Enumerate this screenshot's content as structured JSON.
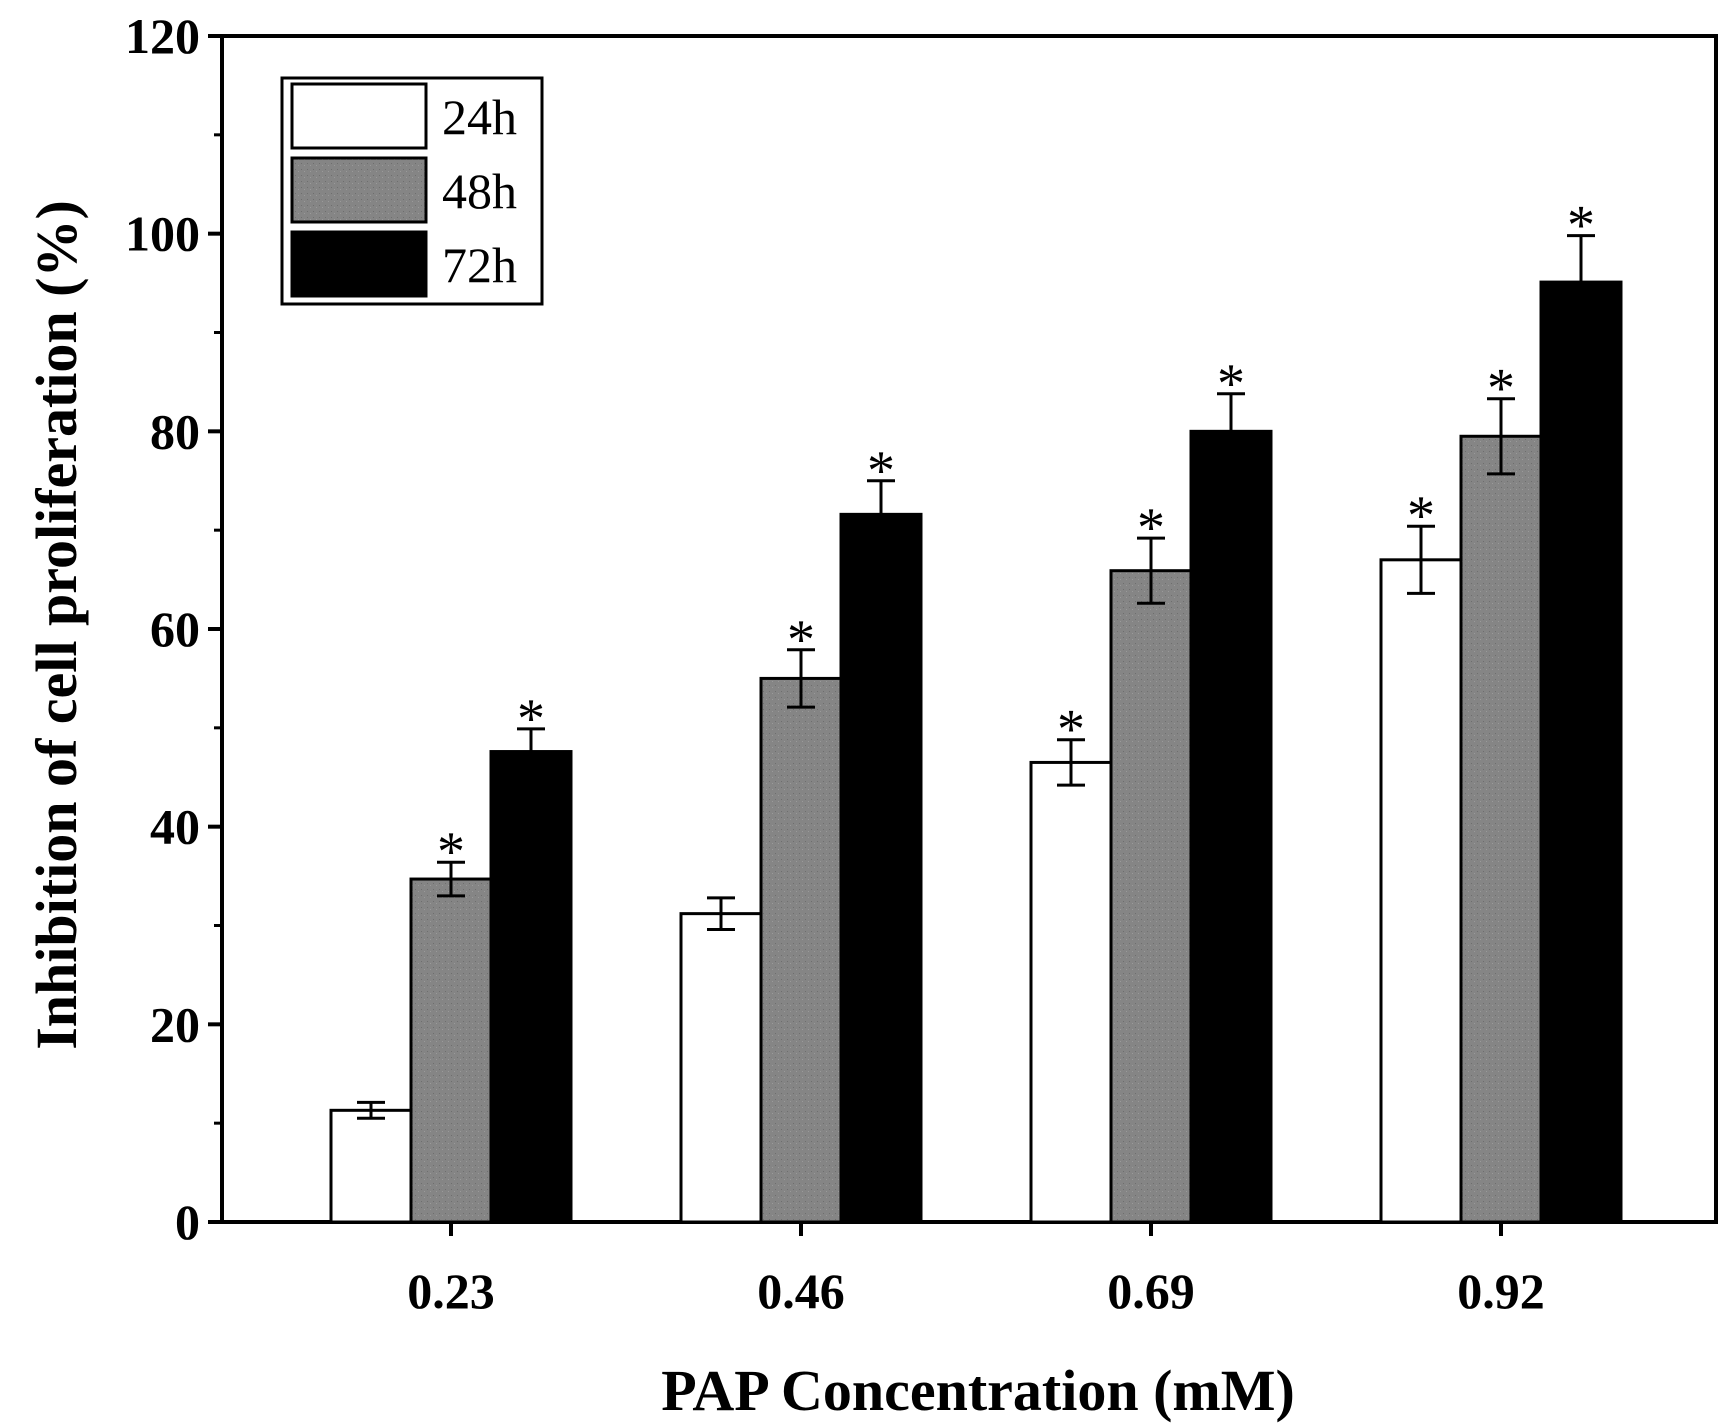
{
  "chart_data": {
    "type": "bar",
    "title": "",
    "xlabel": "PAP Concentration (mM)",
    "ylabel": "Inhibition of cell proliferation (%)",
    "categories": [
      "0.23",
      "0.46",
      "0.69",
      "0.92"
    ],
    "ylim": [
      0,
      120
    ],
    "yticks": [
      "0",
      "20",
      "40",
      "60",
      "80",
      "100",
      "120"
    ],
    "legend_position": "top-left",
    "significance_marker": "*",
    "series": [
      {
        "name": "24h",
        "color": "#ffffff",
        "values": [
          11.3,
          31.2,
          46.5,
          67.0
        ],
        "errors": [
          0.8,
          1.6,
          2.3,
          3.4
        ],
        "significant": [
          false,
          false,
          true,
          true
        ]
      },
      {
        "name": "48h",
        "color": "#808080",
        "values": [
          34.7,
          55.0,
          65.9,
          79.5
        ],
        "errors": [
          1.7,
          2.9,
          3.3,
          3.8
        ],
        "significant": [
          true,
          true,
          true,
          true
        ]
      },
      {
        "name": "72h",
        "color": "#000000",
        "values": [
          47.6,
          71.6,
          80.0,
          95.1
        ],
        "errors": [
          2.3,
          3.4,
          3.8,
          4.7
        ],
        "significant": [
          true,
          true,
          true,
          true
        ]
      }
    ]
  }
}
